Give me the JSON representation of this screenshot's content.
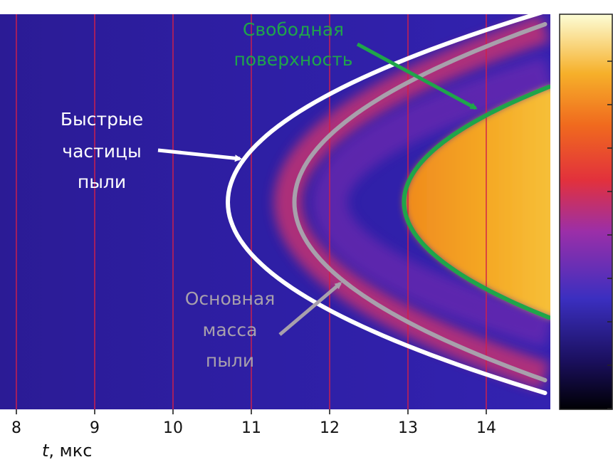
{
  "chart_data": {
    "type": "heatmap",
    "x_axis": {
      "label_var": "t",
      "label_unit": ", мкс",
      "range": [
        7.8,
        14.8
      ],
      "ticks": [
        8,
        9,
        10,
        11,
        12,
        13,
        14
      ]
    },
    "vertical_gridlines": [
      8,
      9,
      10,
      11,
      12,
      13,
      14
    ],
    "colormap": "plasma",
    "colors": {
      "background": "#2a1b9a",
      "gridline": "#d0204a",
      "fast_particles": "#ffffff",
      "main_dust_mass": "#a8a0ac",
      "free_surface": "#1fa54a"
    },
    "series": [
      {
        "name": "Быстрые частицы пыли",
        "shape": "parabola",
        "vertex_t": 10.7,
        "end_t": 14.75
      },
      {
        "name": "Основная масса пыли",
        "shape": "parabola",
        "vertex_t": 11.55,
        "end_t": 14.75
      },
      {
        "name": "Свободная поверхность",
        "shape": "parabola",
        "vertex_t": 12.95,
        "end_t": 14.8
      }
    ],
    "annotations": [
      {
        "id": "fast",
        "lines": [
          "Быстрые",
          "частицы",
          "пыли"
        ]
      },
      {
        "id": "mass",
        "lines": [
          "Основная",
          "масса",
          "пыли"
        ]
      },
      {
        "id": "surface",
        "lines": [
          "Свободная",
          "поверхность"
        ]
      }
    ]
  }
}
